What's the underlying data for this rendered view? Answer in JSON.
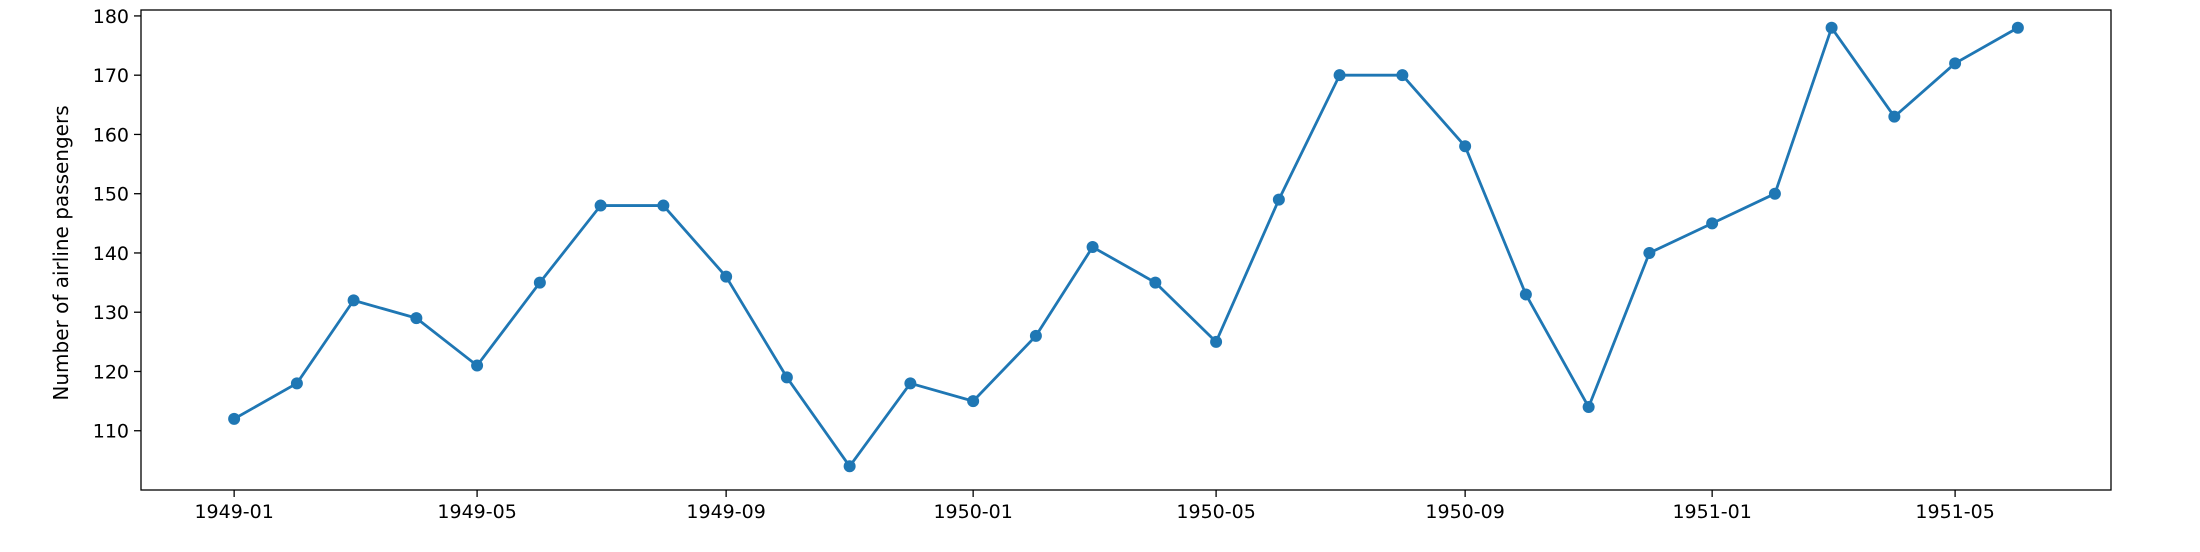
{
  "chart_data": {
    "type": "line",
    "title": "",
    "xlabel": "",
    "ylabel": "Number of airline passengers",
    "x": [
      "1949-01",
      "1949-02",
      "1949-03",
      "1949-04",
      "1949-05",
      "1949-06",
      "1949-07",
      "1949-08",
      "1949-09",
      "1949-10",
      "1949-11",
      "1949-12",
      "1950-01",
      "1950-02",
      "1950-03",
      "1950-04",
      "1950-05",
      "1950-06",
      "1950-07",
      "1950-08",
      "1950-09",
      "1950-10",
      "1950-11",
      "1950-12",
      "1951-01",
      "1951-02",
      "1951-03",
      "1951-04",
      "1951-05",
      "1951-06"
    ],
    "x_ticks": [
      "1949-01",
      "1949-05",
      "1949-09",
      "1950-01",
      "1950-05",
      "1950-09",
      "1951-01",
      "1951-05"
    ],
    "y_ticks": [
      110,
      120,
      130,
      140,
      150,
      160,
      170,
      180
    ],
    "ylim": [
      100,
      181
    ],
    "xlim": [
      "1948-11-16",
      "1951-07-17"
    ],
    "series": [
      {
        "values": [
          112,
          118,
          132,
          129,
          121,
          135,
          148,
          148,
          136,
          119,
          104,
          118,
          115,
          126,
          141,
          135,
          125,
          149,
          170,
          170,
          158,
          133,
          114,
          140,
          145,
          150,
          178,
          163,
          172,
          178
        ],
        "color": "#1f77b4",
        "marker": "circle"
      }
    ],
    "grid": false,
    "legend": "none"
  }
}
